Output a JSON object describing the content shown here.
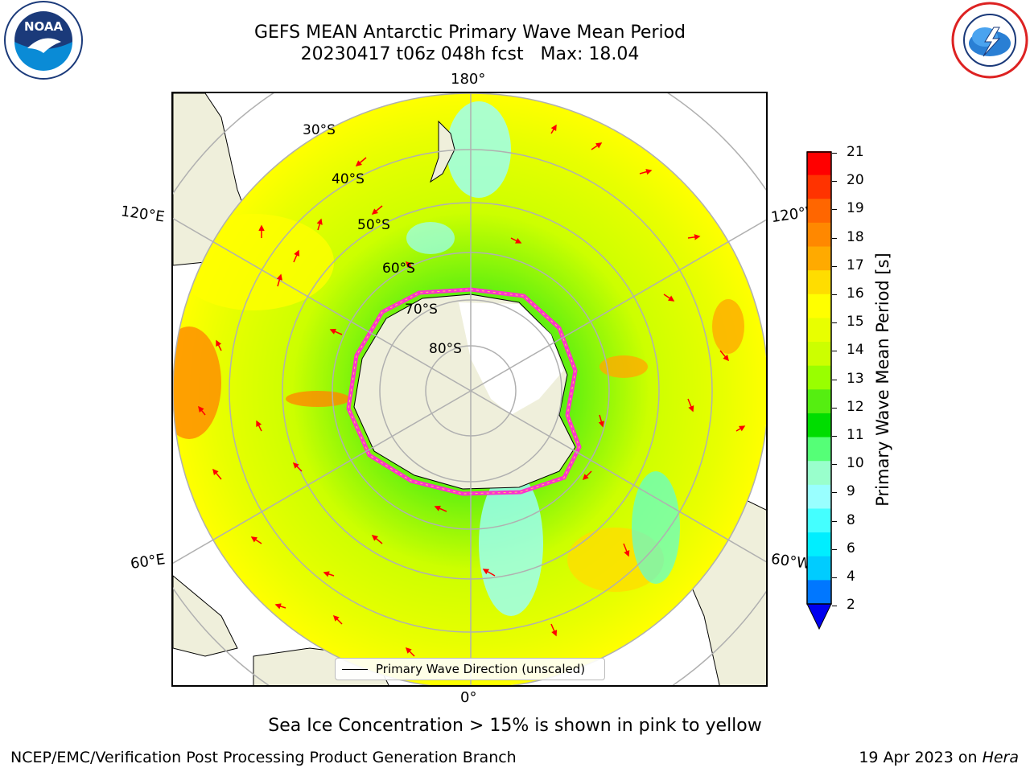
{
  "title": {
    "line1": "GEFS MEAN Antarctic Primary Wave Mean Period",
    "line2": "20230417 t06z 048h fcst   Max: 18.04"
  },
  "logos": {
    "left": "noaa-logo",
    "right": "nws-logo",
    "noaa_text": "NOAA"
  },
  "map": {
    "projection": "south-polar-stereographic",
    "lon_labels": {
      "top": "180°",
      "bottom": "0°",
      "left_upper": "120°E",
      "left_lower": "60°E",
      "right_upper": "120°W",
      "right_lower": "60°W"
    },
    "lat_labels": [
      "30°S",
      "40°S",
      "50°S",
      "60°S",
      "70°S",
      "80°S"
    ]
  },
  "legend": {
    "label": "Primary Wave Direction (unscaled)"
  },
  "colorbar": {
    "label": "Primary Wave Mean Period [s]",
    "ticks": [
      "21",
      "20",
      "19",
      "18",
      "17",
      "16",
      "15",
      "14",
      "13",
      "12",
      "11",
      "10",
      "9",
      "8",
      "6",
      "4",
      "2"
    ],
    "colors": [
      "#ff0000",
      "#ff3300",
      "#ff6600",
      "#ff8800",
      "#ffaa00",
      "#ffdd00",
      "#ffff00",
      "#e8ff00",
      "#ccff00",
      "#99ff00",
      "#55ee11",
      "#00dd00",
      "#55ff77",
      "#99ffcc",
      "#99ffff",
      "#44ffff",
      "#00eeff",
      "#00ccff",
      "#0077ff"
    ],
    "extend_color": "#0000ee"
  },
  "caption": "Sea Ice Concentration > 15% is shown in pink to yellow",
  "footer": {
    "left": "NCEP/EMC/Verification Post Processing Product Generation Branch",
    "right_date": "19 Apr 2023 on ",
    "right_machine": "Hera"
  }
}
